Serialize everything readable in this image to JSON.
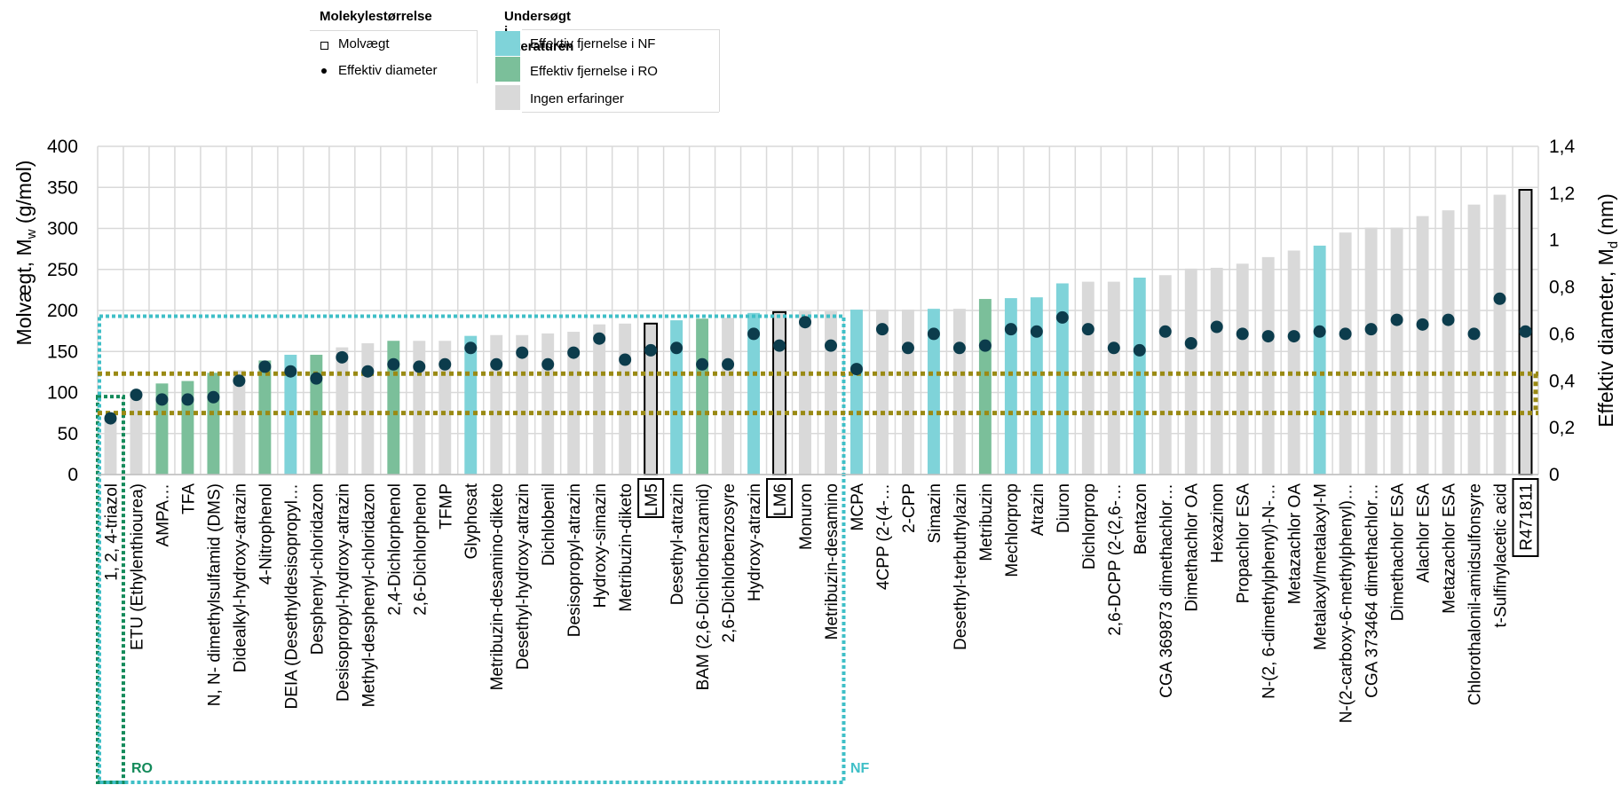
{
  "legend": {
    "size_title": "Molekylestørrelse",
    "size_items": [
      {
        "marker": "square-outline",
        "label": "Molvægt"
      },
      {
        "marker": "dot",
        "label": "Effektiv diameter"
      }
    ],
    "lit_title": "Undersøgt i litteraturen",
    "lit_items": [
      {
        "key": "nf",
        "label": "Effektiv fjernelse i NF"
      },
      {
        "key": "ro",
        "label": "Effektiv fjernelse i RO"
      },
      {
        "key": "none",
        "label": "Ingen erfaringer"
      }
    ]
  },
  "colors": {
    "nf": "#7fd3d9",
    "ro": "#7bbf9a",
    "none": "#d9d9d9",
    "highlight": "#d9d9d9",
    "dot": "#0c3c4c",
    "ro_box": "#138a5a",
    "nf_box": "#3fbfc7",
    "band": "#9a8a14",
    "grid": "#d9d9d9"
  },
  "chart_data": {
    "type": "bar",
    "xlabel": "",
    "ylabel": "Molvægt, M",
    "ylabel_sub": "w",
    "ylabel_unit": " (g/mol)",
    "y2label": "Effektiv diameter, M",
    "y2label_sub": "d",
    "y2label_unit": " (nm)",
    "ylim": [
      0,
      400
    ],
    "y2lim": [
      0,
      1.4
    ],
    "yticks": [
      "0",
      "50",
      "100",
      "150",
      "200",
      "250",
      "300",
      "350",
      "400"
    ],
    "y2ticks": [
      "0",
      "0,2",
      "0,4",
      "0,6",
      "0,8",
      "1",
      "1,2",
      "1,4"
    ],
    "grid": true,
    "region_labels": {
      "ro": "RO",
      "nf": "NF"
    },
    "categories": [
      {
        "label": "1, 2, 4-triazol",
        "mw": 69,
        "d": 0.24,
        "group": "none",
        "boxed": false
      },
      {
        "label": "ETU (Ethylenthiourea)",
        "mw": 102,
        "d": 0.34,
        "group": "none",
        "boxed": false
      },
      {
        "label": "AMPA…",
        "mw": 111,
        "d": 0.32,
        "group": "ro",
        "boxed": false
      },
      {
        "label": "TFA",
        "mw": 114,
        "d": 0.32,
        "group": "ro",
        "boxed": false
      },
      {
        "label": "N, N- dimethylsulfamid (DMS)",
        "mw": 124,
        "d": 0.33,
        "group": "ro",
        "boxed": false
      },
      {
        "label": "Didealkyl-hydroxy-atrazin",
        "mw": 127,
        "d": 0.4,
        "group": "none",
        "boxed": false
      },
      {
        "label": "4-Nitrophenol",
        "mw": 139,
        "d": 0.46,
        "group": "ro",
        "boxed": false
      },
      {
        "label": "DEIA (Desethyldesisopropyl…",
        "mw": 146,
        "d": 0.44,
        "group": "nf",
        "boxed": false
      },
      {
        "label": "Desphenyl-chloridazon",
        "mw": 146,
        "d": 0.41,
        "group": "ro",
        "boxed": false
      },
      {
        "label": "Desisopropyl-hydroxy-atrazin",
        "mw": 155,
        "d": 0.5,
        "group": "none",
        "boxed": false
      },
      {
        "label": "Methyl-desphenyl-chloridazon",
        "mw": 160,
        "d": 0.44,
        "group": "none",
        "boxed": false
      },
      {
        "label": "2,4-Dichlorphenol",
        "mw": 163,
        "d": 0.47,
        "group": "ro",
        "boxed": false
      },
      {
        "label": "2,6-Dichlorphenol",
        "mw": 163,
        "d": 0.46,
        "group": "none",
        "boxed": false
      },
      {
        "label": "TFMP",
        "mw": 163,
        "d": 0.47,
        "group": "none",
        "boxed": false
      },
      {
        "label": "Glyphosat",
        "mw": 169,
        "d": 0.54,
        "group": "nf",
        "boxed": false
      },
      {
        "label": "Metribuzin-desamino-diketo",
        "mw": 170,
        "d": 0.47,
        "group": "none",
        "boxed": false
      },
      {
        "label": "Desethyl-hydroxy-atrazin",
        "mw": 170,
        "d": 0.52,
        "group": "none",
        "boxed": false
      },
      {
        "label": "Dichlobenil",
        "mw": 172,
        "d": 0.47,
        "group": "none",
        "boxed": false
      },
      {
        "label": "Desisopropyl-atrazin",
        "mw": 174,
        "d": 0.52,
        "group": "none",
        "boxed": false
      },
      {
        "label": "Hydroxy-simazin",
        "mw": 183,
        "d": 0.58,
        "group": "none",
        "boxed": false
      },
      {
        "label": "Metribuzin-diketo",
        "mw": 184,
        "d": 0.49,
        "group": "none",
        "boxed": false
      },
      {
        "label": "LM5",
        "mw": 184,
        "d": 0.53,
        "group": "highlight",
        "boxed": true
      },
      {
        "label": "Desethyl-atrazin",
        "mw": 188,
        "d": 0.54,
        "group": "nf",
        "boxed": false
      },
      {
        "label": "BAM (2,6-Dichlorbenzamid)",
        "mw": 190,
        "d": 0.47,
        "group": "ro",
        "boxed": false
      },
      {
        "label": "2,6-Dichlorbenzosyre",
        "mw": 191,
        "d": 0.47,
        "group": "none",
        "boxed": false
      },
      {
        "label": "Hydroxy-atrazin",
        "mw": 197,
        "d": 0.6,
        "group": "nf",
        "boxed": false
      },
      {
        "label": "LM6",
        "mw": 198,
        "d": 0.55,
        "group": "highlight",
        "boxed": true
      },
      {
        "label": "Monuron",
        "mw": 199,
        "d": 0.65,
        "group": "none",
        "boxed": false
      },
      {
        "label": "Metribuzin-desamino",
        "mw": 199,
        "d": 0.55,
        "group": "none",
        "boxed": false
      },
      {
        "label": "MCPA",
        "mw": 201,
        "d": 0.45,
        "group": "nf",
        "boxed": false
      },
      {
        "label": "4CPP (2-(4-…",
        "mw": 201,
        "d": 0.62,
        "group": "none",
        "boxed": false
      },
      {
        "label": "2-CPP",
        "mw": 201,
        "d": 0.54,
        "group": "none",
        "boxed": false
      },
      {
        "label": "Simazin",
        "mw": 202,
        "d": 0.6,
        "group": "nf",
        "boxed": false
      },
      {
        "label": "Desethyl-terbuthylazin",
        "mw": 202,
        "d": 0.54,
        "group": "none",
        "boxed": false
      },
      {
        "label": "Metribuzin",
        "mw": 214,
        "d": 0.55,
        "group": "ro",
        "boxed": false
      },
      {
        "label": "Mechlorprop",
        "mw": 215,
        "d": 0.62,
        "group": "nf",
        "boxed": false
      },
      {
        "label": "Atrazin",
        "mw": 216,
        "d": 0.61,
        "group": "nf",
        "boxed": false
      },
      {
        "label": "Diuron",
        "mw": 233,
        "d": 0.67,
        "group": "nf",
        "boxed": false
      },
      {
        "label": "Dichlorprop",
        "mw": 235,
        "d": 0.62,
        "group": "none",
        "boxed": false
      },
      {
        "label": "2,6-DCPP (2-(2,6-…",
        "mw": 235,
        "d": 0.54,
        "group": "none",
        "boxed": false
      },
      {
        "label": "Bentazon",
        "mw": 240,
        "d": 0.53,
        "group": "nf",
        "boxed": false
      },
      {
        "label": "CGA 369873 dimethachlor…",
        "mw": 243,
        "d": 0.61,
        "group": "none",
        "boxed": false
      },
      {
        "label": "Dimethachlor OA",
        "mw": 251,
        "d": 0.56,
        "group": "none",
        "boxed": false
      },
      {
        "label": "Hexazinon",
        "mw": 252,
        "d": 0.63,
        "group": "none",
        "boxed": false
      },
      {
        "label": "Propachlor ESA",
        "mw": 257,
        "d": 0.6,
        "group": "none",
        "boxed": false
      },
      {
        "label": "N-(2, 6-dimethylphenyl)-N-…",
        "mw": 265,
        "d": 0.59,
        "group": "none",
        "boxed": false
      },
      {
        "label": "Metazachlor OA",
        "mw": 273,
        "d": 0.59,
        "group": "none",
        "boxed": false
      },
      {
        "label": "Metalaxyl/metalaxyl-M",
        "mw": 279,
        "d": 0.61,
        "group": "nf",
        "boxed": false
      },
      {
        "label": "N-(2-carboxy-6-methylphenyl)…",
        "mw": 295,
        "d": 0.6,
        "group": "none",
        "boxed": false
      },
      {
        "label": "CGA 373464 dimethachlor…",
        "mw": 301,
        "d": 0.62,
        "group": "none",
        "boxed": false
      },
      {
        "label": "Dimethachlor ESA",
        "mw": 301,
        "d": 0.66,
        "group": "none",
        "boxed": false
      },
      {
        "label": "Alachlor ESA",
        "mw": 315,
        "d": 0.64,
        "group": "none",
        "boxed": false
      },
      {
        "label": "Metazachlor ESA",
        "mw": 322,
        "d": 0.66,
        "group": "none",
        "boxed": false
      },
      {
        "label": "Chlorothalonil-amidsulfonsyre",
        "mw": 329,
        "d": 0.6,
        "group": "none",
        "boxed": false
      },
      {
        "label": "t-Sulfinylacetic acid",
        "mw": 341,
        "d": 0.75,
        "group": "none",
        "boxed": false
      },
      {
        "label": "R471811",
        "mw": 347,
        "d": 0.61,
        "group": "highlight",
        "boxed": true
      }
    ]
  }
}
